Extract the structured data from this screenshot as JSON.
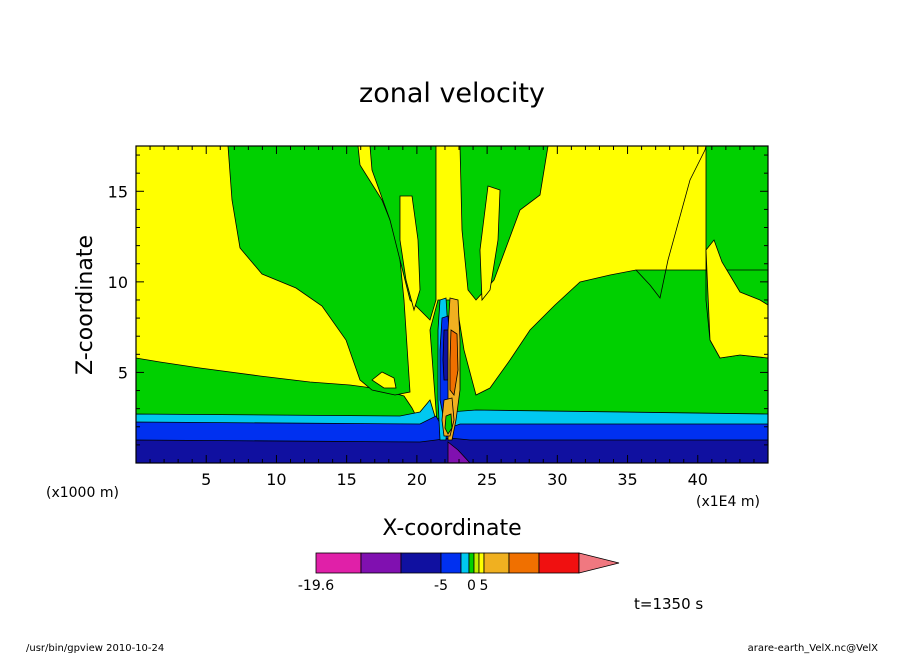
{
  "chart_data": {
    "type": "contour",
    "title": "zonal velocity",
    "xlabel": "X-coordinate",
    "ylabel": "Z-coordinate",
    "x_unit_note": "(x1E4 m)",
    "y_unit_note": "(x1000 m)",
    "xlim": [
      0,
      45
    ],
    "ylim": [
      0,
      17.5
    ],
    "x_ticks": [
      "5",
      "10",
      "15",
      "20",
      "25",
      "30",
      "35",
      "40"
    ],
    "y_ticks": [
      "5",
      "10",
      "15"
    ],
    "colorbar": {
      "colors": [
        "#e020a8",
        "#8010b0",
        "#1010a0",
        "#0030f0",
        "#00c8f0",
        "#00d000",
        "#c0f000",
        "#ffff00",
        "#f0b020",
        "#f07000",
        "#f01010",
        "#f07880"
      ],
      "tick_labels": [
        {
          "label": "-19.6",
          "boundary": 0
        },
        {
          "label": "-5",
          "boundary": 3
        },
        {
          "label": "0",
          "boundary": 5.5
        },
        {
          "label": "5",
          "boundary": 8
        }
      ]
    }
  },
  "annotations": {
    "time": "t=1350 s",
    "footer_left": "/usr/bin/gpview  2010-10-24",
    "footer_right": "arare-earth_VelX.nc@VelX"
  }
}
